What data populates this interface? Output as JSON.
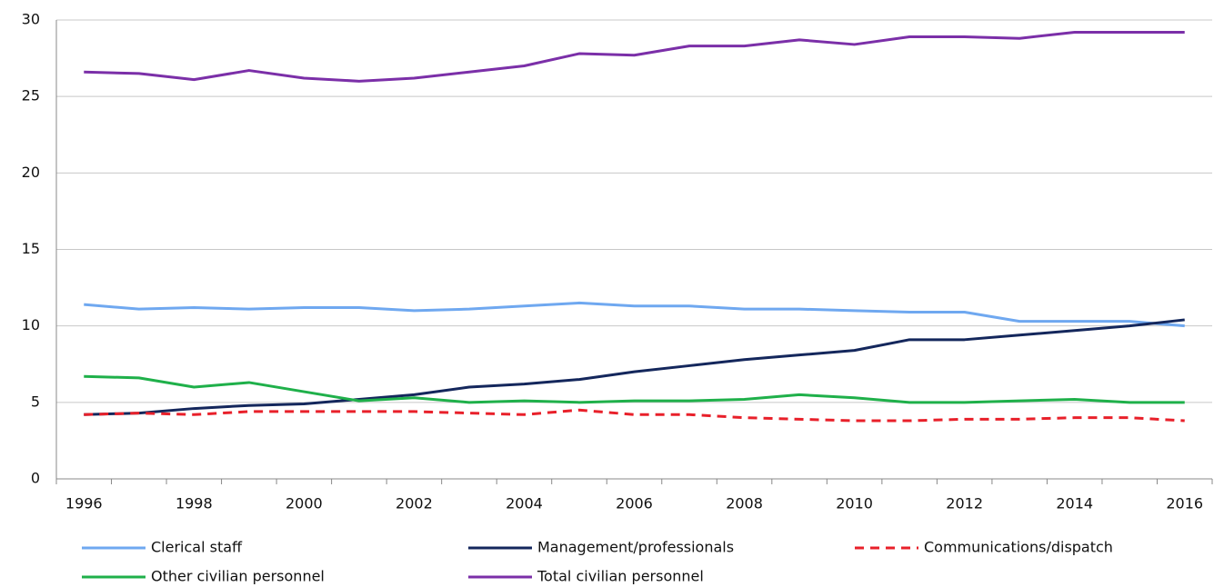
{
  "chart_data": {
    "type": "line",
    "categories": [
      "1996",
      null,
      "1998",
      null,
      "2000",
      null,
      "2002",
      null,
      "2004",
      null,
      "2006",
      null,
      "2008",
      null,
      "2010",
      null,
      "2012",
      null,
      "2014",
      null,
      "2016"
    ],
    "series": [
      {
        "name": "Clerical staff",
        "color": "#6fa8f0",
        "values": [
          11.4,
          11.1,
          11.2,
          11.1,
          11.2,
          11.2,
          11.0,
          11.1,
          11.3,
          11.5,
          11.3,
          11.3,
          11.1,
          11.1,
          11.0,
          10.9,
          10.9,
          10.3,
          10.3,
          10.3,
          10.0
        ]
      },
      {
        "name": "Management/professionals",
        "color": "#14275c",
        "values": [
          4.2,
          4.3,
          4.6,
          4.8,
          4.9,
          5.2,
          5.5,
          6.0,
          6.2,
          6.5,
          7.0,
          7.4,
          7.8,
          8.1,
          8.4,
          9.1,
          9.1,
          9.4,
          9.7,
          10.0,
          10.4
        ]
      },
      {
        "name": "Communications/dispatch",
        "color": "#e8202a",
        "linestyle": "dashed",
        "values": [
          4.2,
          4.3,
          4.2,
          4.4,
          4.4,
          4.4,
          4.4,
          4.3,
          4.2,
          4.5,
          4.2,
          4.2,
          4.0,
          3.9,
          3.8,
          3.8,
          3.9,
          3.9,
          4.0,
          4.0,
          3.8
        ]
      },
      {
        "name": "Other civilian personnel",
        "color": "#1fb04a",
        "values": [
          6.7,
          6.6,
          6.0,
          6.3,
          5.7,
          5.1,
          5.3,
          5.0,
          5.1,
          5.0,
          5.1,
          5.1,
          5.2,
          5.5,
          5.3,
          5.0,
          5.0,
          5.1,
          5.2,
          5.0,
          5.0
        ]
      },
      {
        "name": "Total civilian personnel",
        "color": "#7b2fa8",
        "values": [
          26.6,
          26.5,
          26.1,
          26.7,
          26.2,
          26.0,
          26.2,
          26.6,
          27.0,
          27.8,
          27.7,
          28.3,
          28.3,
          28.7,
          28.4,
          28.9,
          28.9,
          28.8,
          29.2,
          29.2,
          29.2
        ]
      }
    ],
    "ylim": [
      0,
      30
    ],
    "yticks": [
      0,
      5,
      10,
      15,
      20,
      25,
      30
    ],
    "grid": true
  }
}
